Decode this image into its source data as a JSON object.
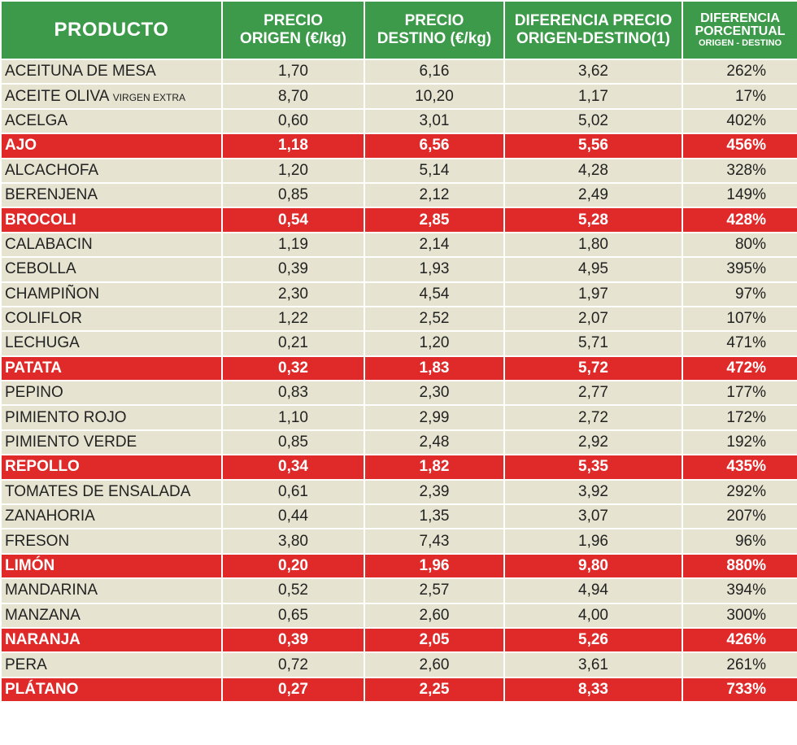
{
  "colors": {
    "header_bg": "#3d9a4a",
    "row_bg": "#e6e4d0",
    "highlight_bg": "#e02a2a"
  },
  "header": {
    "producto": "PRODUCTO",
    "precio_origen_line1": "PRECIO",
    "precio_origen_line2": "ORIGEN (€/kg)",
    "precio_destino_line1": "PRECIO",
    "precio_destino_line2": "DESTINO (€/kg)",
    "diferencia_line1": "DIFERENCIA PRECIO",
    "diferencia_line2": "ORIGEN-DESTINO(1)",
    "porcentual_line1": "DIFERENCIA",
    "porcentual_line2": "PORCENTUAL",
    "porcentual_line3": "ORIGEN - DESTINO"
  },
  "rows": [
    {
      "producto": "ACEITUNA DE MESA",
      "producto_small": "",
      "origen": "1,70",
      "destino": "6,16",
      "diferencia": "3,62",
      "porcentaje": "262%",
      "highlight": false
    },
    {
      "producto": "ACEITE OLIVA ",
      "producto_small": "VIRGEN EXTRA",
      "origen": "8,70",
      "destino": "10,20",
      "diferencia": "1,17",
      "porcentaje": "17%",
      "highlight": false
    },
    {
      "producto": "ACELGA",
      "producto_small": "",
      "origen": "0,60",
      "destino": "3,01",
      "diferencia": "5,02",
      "porcentaje": "402%",
      "highlight": false
    },
    {
      "producto": "AJO",
      "producto_small": "",
      "origen": "1,18",
      "destino": "6,56",
      "diferencia": "5,56",
      "porcentaje": "456%",
      "highlight": true
    },
    {
      "producto": "ALCACHOFA",
      "producto_small": "",
      "origen": "1,20",
      "destino": "5,14",
      "diferencia": "4,28",
      "porcentaje": "328%",
      "highlight": false
    },
    {
      "producto": "BERENJENA",
      "producto_small": "",
      "origen": "0,85",
      "destino": "2,12",
      "diferencia": "2,49",
      "porcentaje": "149%",
      "highlight": false
    },
    {
      "producto": "BROCOLI",
      "producto_small": "",
      "origen": "0,54",
      "destino": "2,85",
      "diferencia": "5,28",
      "porcentaje": "428%",
      "highlight": true
    },
    {
      "producto": "CALABACIN",
      "producto_small": "",
      "origen": "1,19",
      "destino": "2,14",
      "diferencia": "1,80",
      "porcentaje": "80%",
      "highlight": false
    },
    {
      "producto": "CEBOLLA",
      "producto_small": "",
      "origen": "0,39",
      "destino": "1,93",
      "diferencia": "4,95",
      "porcentaje": "395%",
      "highlight": false
    },
    {
      "producto": "CHAMPIÑON",
      "producto_small": "",
      "origen": "2,30",
      "destino": "4,54",
      "diferencia": "1,97",
      "porcentaje": "97%",
      "highlight": false
    },
    {
      "producto": "COLIFLOR",
      "producto_small": "",
      "origen": "1,22",
      "destino": "2,52",
      "diferencia": "2,07",
      "porcentaje": "107%",
      "highlight": false
    },
    {
      "producto": "LECHUGA",
      "producto_small": "",
      "origen": "0,21",
      "destino": "1,20",
      "diferencia": "5,71",
      "porcentaje": "471%",
      "highlight": false
    },
    {
      "producto": "PATATA",
      "producto_small": "",
      "origen": "0,32",
      "destino": "1,83",
      "diferencia": "5,72",
      "porcentaje": "472%",
      "highlight": true
    },
    {
      "producto": "PEPINO",
      "producto_small": "",
      "origen": "0,83",
      "destino": "2,30",
      "diferencia": "2,77",
      "porcentaje": "177%",
      "highlight": false
    },
    {
      "producto": "PIMIENTO ROJO",
      "producto_small": "",
      "origen": "1,10",
      "destino": "2,99",
      "diferencia": "2,72",
      "porcentaje": "172%",
      "highlight": false
    },
    {
      "producto": "PIMIENTO VERDE",
      "producto_small": "",
      "origen": "0,85",
      "destino": "2,48",
      "diferencia": "2,92",
      "porcentaje": "192%",
      "highlight": false
    },
    {
      "producto": "REPOLLO",
      "producto_small": "",
      "origen": "0,34",
      "destino": "1,82",
      "diferencia": "5,35",
      "porcentaje": "435%",
      "highlight": true
    },
    {
      "producto": "TOMATES DE ENSALADA",
      "producto_small": "",
      "origen": "0,61",
      "destino": "2,39",
      "diferencia": "3,92",
      "porcentaje": "292%",
      "highlight": false
    },
    {
      "producto": "ZANAHORIA",
      "producto_small": "",
      "origen": "0,44",
      "destino": "1,35",
      "diferencia": "3,07",
      "porcentaje": "207%",
      "highlight": false
    },
    {
      "producto": "FRESON",
      "producto_small": "",
      "origen": "3,80",
      "destino": "7,43",
      "diferencia": "1,96",
      "porcentaje": "96%",
      "highlight": false
    },
    {
      "producto": "LIMÓN",
      "producto_small": "",
      "origen": "0,20",
      "destino": "1,96",
      "diferencia": "9,80",
      "porcentaje": "880%",
      "highlight": true
    },
    {
      "producto": "MANDARINA",
      "producto_small": "",
      "origen": "0,52",
      "destino": "2,57",
      "diferencia": "4,94",
      "porcentaje": "394%",
      "highlight": false
    },
    {
      "producto": "MANZANA",
      "producto_small": "",
      "origen": "0,65",
      "destino": "2,60",
      "diferencia": "4,00",
      "porcentaje": "300%",
      "highlight": false
    },
    {
      "producto": "NARANJA",
      "producto_small": "",
      "origen": "0,39",
      "destino": "2,05",
      "diferencia": "5,26",
      "porcentaje": "426%",
      "highlight": true
    },
    {
      "producto": "PERA",
      "producto_small": "",
      "origen": "0,72",
      "destino": "2,60",
      "diferencia": "3,61",
      "porcentaje": "261%",
      "highlight": false
    },
    {
      "producto": "PLÁTANO",
      "producto_small": "",
      "origen": "0,27",
      "destino": "2,25",
      "diferencia": "8,33",
      "porcentaje": "733%",
      "highlight": true
    }
  ]
}
